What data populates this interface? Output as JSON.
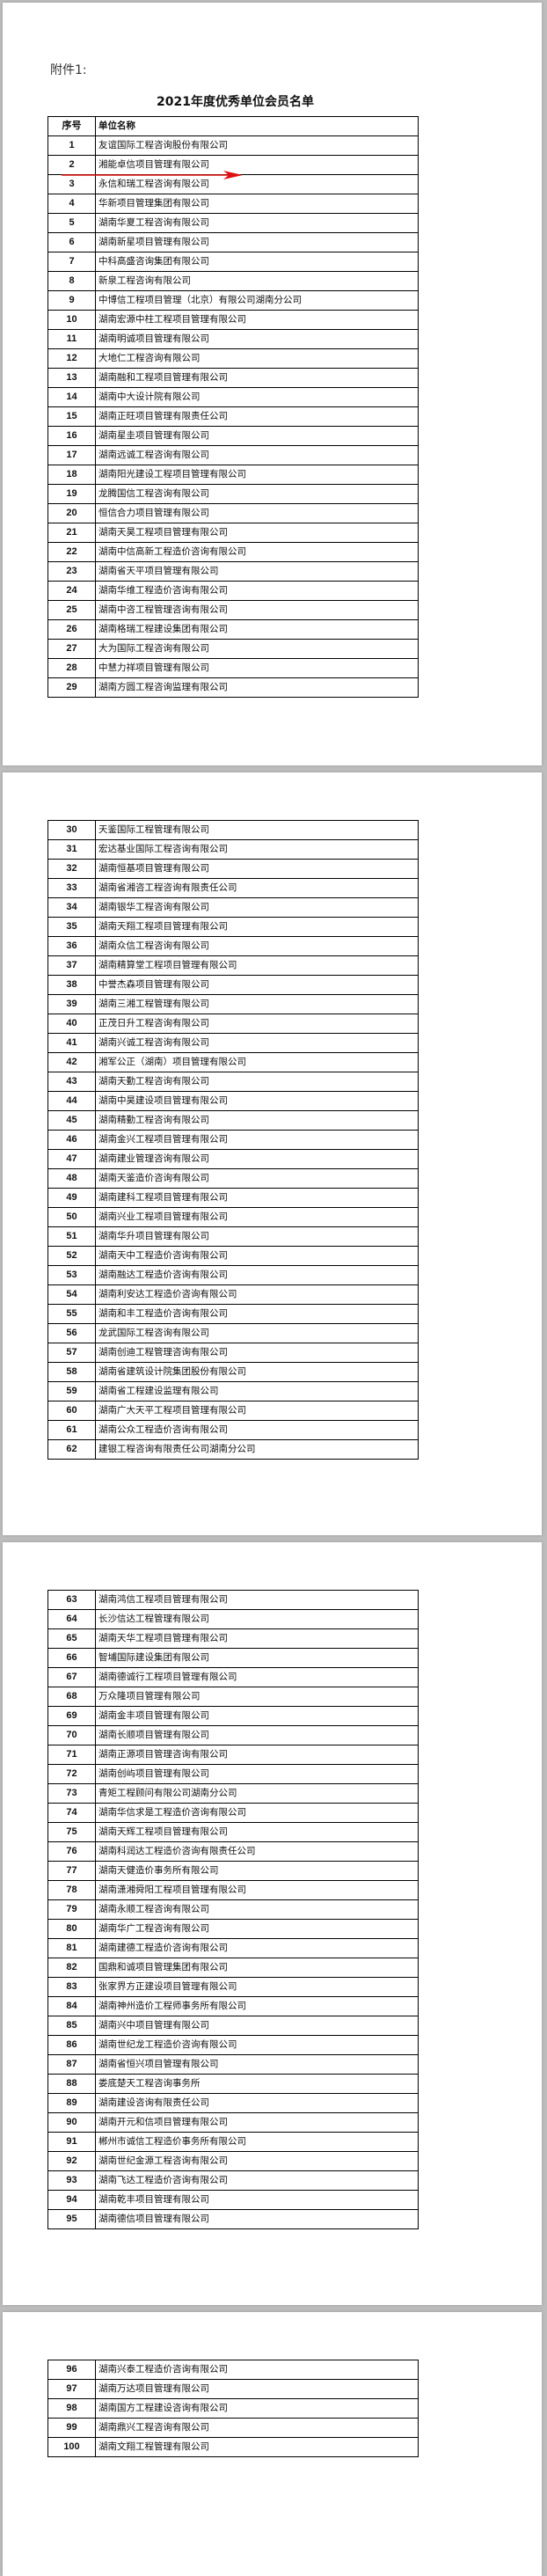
{
  "attachment_label": "附件1:",
  "title": "2021年度优秀单位会员名单",
  "table": {
    "headers": [
      "序号",
      "单位名称"
    ],
    "rows": [
      [
        "1",
        "友谊国际工程咨询股份有限公司"
      ],
      [
        "2",
        "湘能卓信项目管理有限公司"
      ],
      [
        "3",
        "永信和瑞工程咨询有限公司"
      ],
      [
        "4",
        "华新项目管理集团有限公司"
      ],
      [
        "5",
        "湖南华夏工程咨询有限公司"
      ],
      [
        "6",
        "湖南新星项目管理有限公司"
      ],
      [
        "7",
        "中科高盛咨询集团有限公司"
      ],
      [
        "8",
        "新泉工程咨询有限公司"
      ],
      [
        "9",
        "中博信工程项目管理（北京）有限公司湖南分公司"
      ],
      [
        "10",
        "湖南宏源中柱工程项目管理有限公司"
      ],
      [
        "11",
        "湖南明诚项目管理有限公司"
      ],
      [
        "12",
        "大地仁工程咨询有限公司"
      ],
      [
        "13",
        "湖南融和工程项目管理有限公司"
      ],
      [
        "14",
        "湖南中大设计院有限公司"
      ],
      [
        "15",
        "湖南正旺项目管理有限责任公司"
      ],
      [
        "16",
        "湖南星圭项目管理有限公司"
      ],
      [
        "17",
        "湖南远诚工程咨询有限公司"
      ],
      [
        "18",
        "湖南阳光建设工程项目管理有限公司"
      ],
      [
        "19",
        "龙腾国信工程咨询有限公司"
      ],
      [
        "20",
        "恒信合力项目管理有限公司"
      ],
      [
        "21",
        "湖南天昊工程项目管理有限公司"
      ],
      [
        "22",
        "湖南中信高新工程造价咨询有限公司"
      ],
      [
        "23",
        "湖南省天平项目管理有限公司"
      ],
      [
        "24",
        "湖南华维工程造价咨询有限公司"
      ],
      [
        "25",
        "湖南中咨工程管理咨询有限公司"
      ],
      [
        "26",
        "湖南格瑞工程建设集团有限公司"
      ],
      [
        "27",
        "大为国际工程咨询有限公司"
      ],
      [
        "28",
        "中慧力祥项目管理有限公司"
      ],
      [
        "29",
        "湖南方圆工程咨询监理有限公司"
      ],
      [
        "30",
        "天鉴国际工程管理有限公司"
      ],
      [
        "31",
        "宏达基业国际工程咨询有限公司"
      ],
      [
        "32",
        "湖南恒基项目管理有限公司"
      ],
      [
        "33",
        "湖南省湘咨工程咨询有限责任公司"
      ],
      [
        "34",
        "湖南银华工程咨询有限公司"
      ],
      [
        "35",
        "湖南天翔工程项目管理有限公司"
      ],
      [
        "36",
        "湖南众信工程咨询有限公司"
      ],
      [
        "37",
        "湖南精算堂工程项目管理有限公司"
      ],
      [
        "38",
        "中誉杰森项目管理有限公司"
      ],
      [
        "39",
        "湖南三湘工程管理有限公司"
      ],
      [
        "40",
        "正茂日升工程咨询有限公司"
      ],
      [
        "41",
        "湖南兴诚工程咨询有限公司"
      ],
      [
        "42",
        "湘军公正（湖南）项目管理有限公司"
      ],
      [
        "43",
        "湖南天勤工程咨询有限公司"
      ],
      [
        "44",
        "湖南中昊建设项目管理有限公司"
      ],
      [
        "45",
        "湖南精勤工程咨询有限公司"
      ],
      [
        "46",
        "湖南金兴工程项目管理有限公司"
      ],
      [
        "47",
        "湖南建业管理咨询有限公司"
      ],
      [
        "48",
        "湖南天鉴造价咨询有限公司"
      ],
      [
        "49",
        "湖南建科工程项目管理有限公司"
      ],
      [
        "50",
        "湖南兴业工程项目管理有限公司"
      ],
      [
        "51",
        "湖南华升项目管理有限公司"
      ],
      [
        "52",
        "湖南天中工程造价咨询有限公司"
      ],
      [
        "53",
        "湖南融达工程造价咨询有限公司"
      ],
      [
        "54",
        "湖南利安达工程造价咨询有限公司"
      ],
      [
        "55",
        "湖南和丰工程造价咨询有限公司"
      ],
      [
        "56",
        "龙武国际工程咨询有限公司"
      ],
      [
        "57",
        "湖南创迪工程管理咨询有限公司"
      ],
      [
        "58",
        "湖南省建筑设计院集团股份有限公司"
      ],
      [
        "59",
        "湖南省工程建设监理有限公司"
      ],
      [
        "60",
        "湖南广大天平工程项目管理有限公司"
      ],
      [
        "61",
        "湖南公众工程造价咨询有限公司"
      ],
      [
        "62",
        "建银工程咨询有限责任公司湖南分公司"
      ],
      [
        "63",
        "湖南鸿信工程项目管理有限公司"
      ],
      [
        "64",
        "长沙信达工程管理有限公司"
      ],
      [
        "65",
        "湖南天华工程项目管理有限公司"
      ],
      [
        "66",
        "智埔国际建设集团有限公司"
      ],
      [
        "67",
        "湖南德诚行工程项目管理有限公司"
      ],
      [
        "68",
        "万众隆项目管理有限公司"
      ],
      [
        "69",
        "湖南金丰项目管理有限公司"
      ],
      [
        "70",
        "湖南长顺项目管理有限公司"
      ],
      [
        "71",
        "湖南正源项目管理咨询有限公司"
      ],
      [
        "72",
        "湖南创屿项目管理有限公司"
      ],
      [
        "73",
        "青矩工程顾问有限公司湖南分公司"
      ],
      [
        "74",
        "湖南华信求是工程造价咨询有限公司"
      ],
      [
        "75",
        "湖南天辉工程项目管理有限公司"
      ],
      [
        "76",
        "湖南科润达工程造价咨询有限责任公司"
      ],
      [
        "77",
        "湖南天健造价事务所有限公司"
      ],
      [
        "78",
        "湖南潇湘舜阳工程项目管理有限公司"
      ],
      [
        "79",
        "湖南永顺工程咨询有限公司"
      ],
      [
        "80",
        "湖南华广工程咨询有限公司"
      ],
      [
        "81",
        "湖南建德工程造价咨询有限公司"
      ],
      [
        "82",
        "国鼎和诚项目管理集团有限公司"
      ],
      [
        "83",
        "张家界方正建设项目管理有限公司"
      ],
      [
        "84",
        "湖南神州造价工程师事务所有限公司"
      ],
      [
        "85",
        "湖南兴中项目管理有限公司"
      ],
      [
        "86",
        "湖南世纪龙工程造价咨询有限公司"
      ],
      [
        "87",
        "湖南省恒兴项目管理有限公司"
      ],
      [
        "88",
        "娄底楚天工程咨询事务所"
      ],
      [
        "89",
        "湖南建设咨询有限责任公司"
      ],
      [
        "90",
        "湖南开元和信项目管理有限公司"
      ],
      [
        "91",
        "郴州市诚信工程造价事务所有限公司"
      ],
      [
        "92",
        "湖南世纪金源工程咨询有限公司"
      ],
      [
        "93",
        "湖南飞达工程造价咨询有限公司"
      ],
      [
        "94",
        "湖南乾丰项目管理有限公司"
      ],
      [
        "95",
        "湖南德信项目管理有限公司"
      ],
      [
        "96",
        "湖南兴泰工程造价咨询有限公司"
      ],
      [
        "97",
        "湖南万达项目管理有限公司"
      ],
      [
        "98",
        "湖南国方工程建设咨询有限公司"
      ],
      [
        "99",
        "湖南鼎兴工程咨询有限公司"
      ],
      [
        "100",
        "湖南文翔工程管理有限公司"
      ]
    ]
  },
  "colors": {
    "annotation_arrow": "#e01010",
    "page_background": "#bdbdbd"
  }
}
